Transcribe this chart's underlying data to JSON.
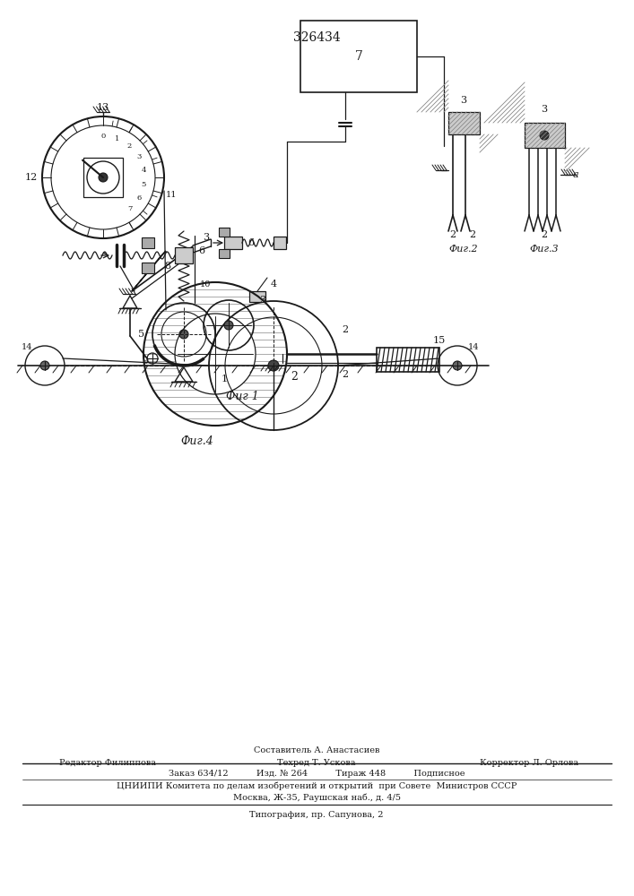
{
  "patent_number": "326434",
  "bg": "#ffffff",
  "lc": "#1a1a1a",
  "fig_width": 7.07,
  "fig_height": 10.0,
  "footer_compose": "Составитель А. Анастасиев",
  "footer_l1_left": "Редактор Филиппова",
  "footer_l1_center": "Техред Т. Ускова",
  "footer_l1_right": "Корректор Л. Орлова",
  "footer_l2": "Заказ 634/12          Изд. № 264          Тираж 448          Подписное",
  "footer_l3": "ЦНИИПИ Комитета по делам изобретений и открытий  при Совете  Министров СССР",
  "footer_l4": "Москва, Ж-35, Раушская наб., д. 4/5",
  "footer_l5": "Типография, пр. Сапунова, 2",
  "fig1_label": "Фиг 1",
  "fig2_label": "Фиг.2",
  "fig3_label": "Фиг.3",
  "fig4_label": "Фиг.4"
}
